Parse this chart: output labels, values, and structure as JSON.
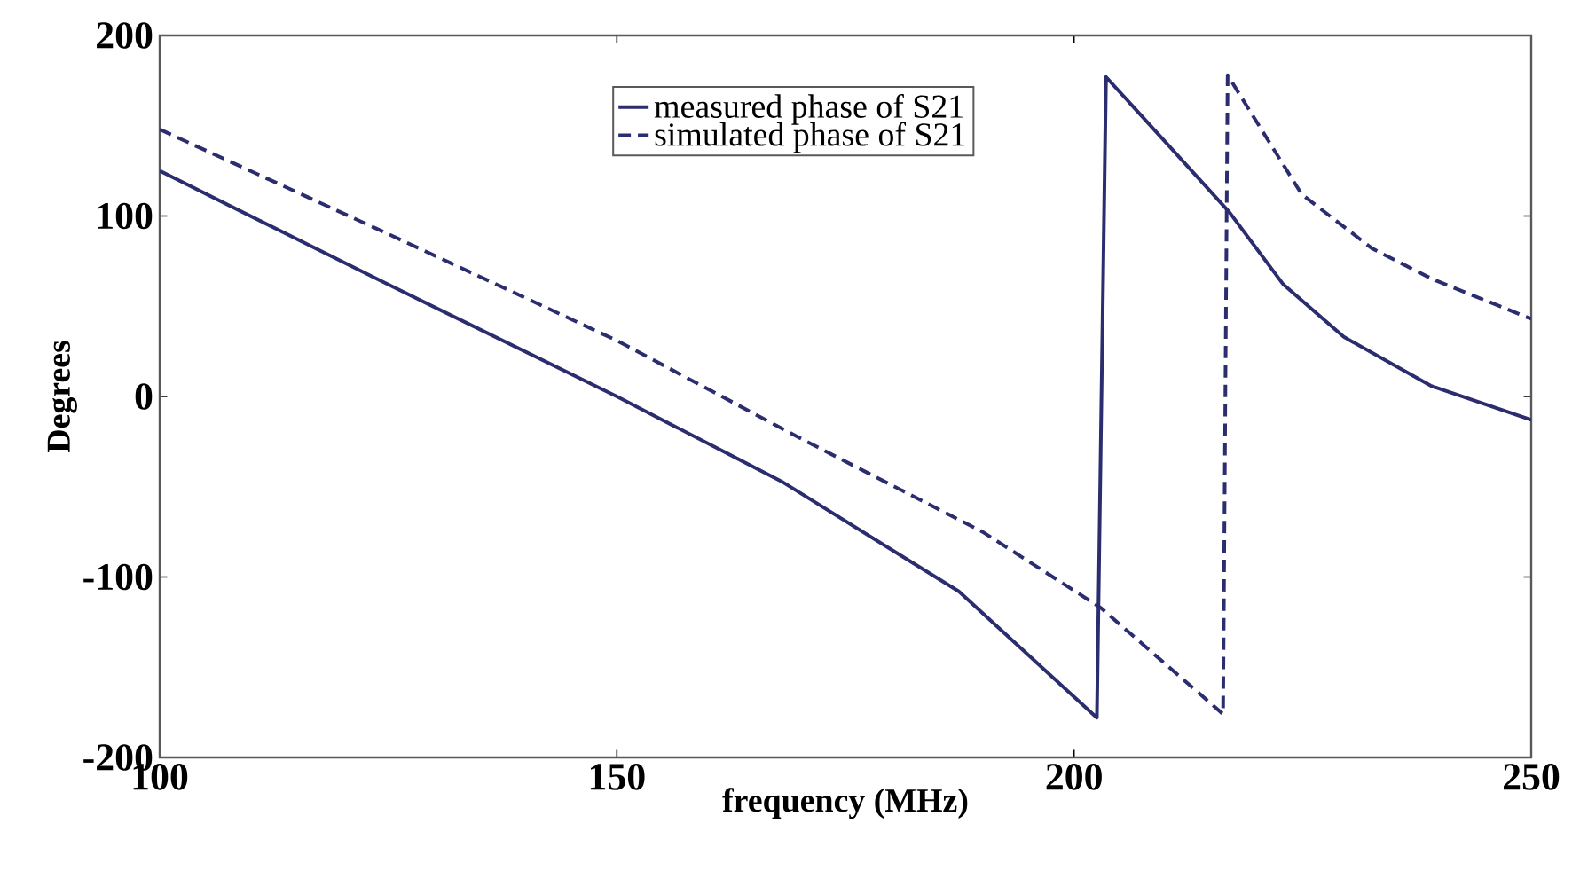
{
  "chart_data": {
    "type": "line",
    "xlabel": "frequency (MHz)",
    "ylabel": "Degrees",
    "xlim": [
      100,
      250
    ],
    "ylim": [
      -200,
      200
    ],
    "xticks": [
      100,
      150,
      200,
      250
    ],
    "yticks": [
      -200,
      -100,
      0,
      100,
      200
    ],
    "grid": false,
    "legend": "top",
    "series": [
      {
        "name": "measured phase of S21",
        "color": "#2b2d6e",
        "line_style": "solid",
        "x": [
          100,
          125,
          150,
          168,
          187.4,
          202.5,
          203.5,
          210,
          217,
          222.9,
          229.5,
          239,
          250
        ],
        "values": [
          125,
          62,
          0,
          -47,
          -108,
          -178,
          177,
          141,
          102,
          62,
          33,
          6,
          -13
        ]
      },
      {
        "name": "simulated phase of S21",
        "color": "#2b2d6e",
        "line_style": "dashed",
        "x": [
          100,
          125,
          150,
          170,
          190,
          202.9,
          216.3,
          216.8,
          224.9,
          232.6,
          239.2,
          250
        ],
        "values": [
          148,
          90,
          31,
          -23,
          -75,
          -117,
          -176,
          178,
          112,
          82,
          65,
          43
        ]
      }
    ]
  }
}
